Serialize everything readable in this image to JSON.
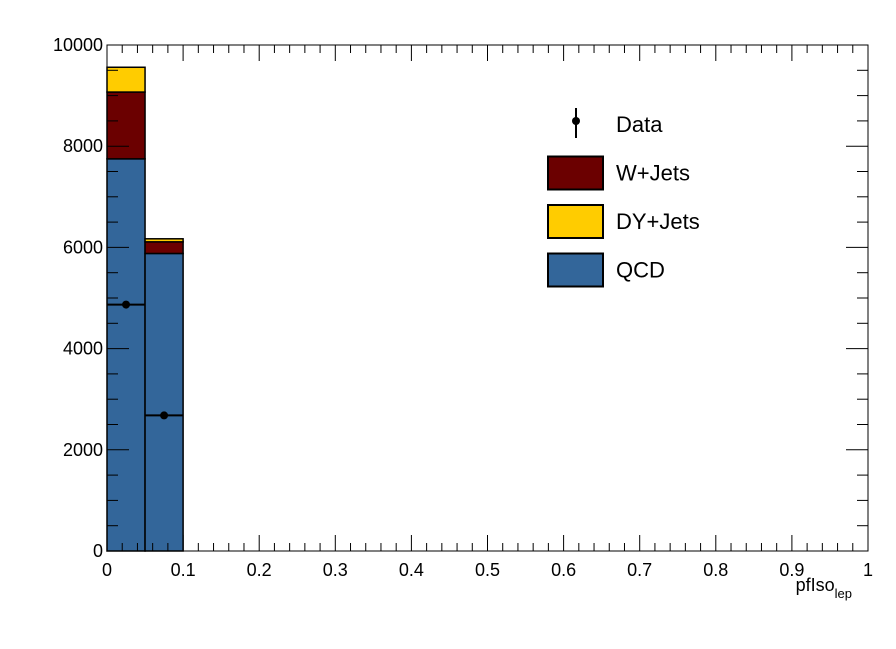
{
  "chart_data": {
    "type": "bar",
    "stacked": true,
    "xlabel": "pfIso",
    "xlabel_sub": "lep",
    "ylabel": "",
    "xlim": [
      0,
      1
    ],
    "ylim": [
      0,
      10000
    ],
    "x_ticks": [
      "0",
      "0.1",
      "0.2",
      "0.3",
      "0.4",
      "0.5",
      "0.6",
      "0.7",
      "0.8",
      "0.9",
      "1"
    ],
    "y_ticks": [
      "0",
      "2000",
      "4000",
      "6000",
      "8000",
      "10000"
    ],
    "bins": [
      {
        "x0": 0.0,
        "x1": 0.05
      },
      {
        "x0": 0.05,
        "x1": 0.1
      }
    ],
    "series": [
      {
        "name": "QCD",
        "color": "#33669a",
        "values": [
          7750,
          5880
        ]
      },
      {
        "name": "DY+Jets",
        "color": "#ffcc00",
        "values": [
          0,
          0
        ]
      },
      {
        "name": "W+Jets",
        "color": "#6b0000",
        "values": [
          1320,
          230
        ]
      },
      {
        "name": "DY+Jets (top)",
        "color": "#ffcc00",
        "values": [
          490,
          60
        ]
      }
    ],
    "data_points": {
      "name": "Data",
      "points": [
        {
          "x": 0.025,
          "xerr": 0.025,
          "y": 4870
        },
        {
          "x": 0.075,
          "xerr": 0.025,
          "y": 2680
        }
      ]
    },
    "legend": {
      "position": "top-right",
      "entries": [
        {
          "label": "Data",
          "kind": "marker",
          "color": "#000000"
        },
        {
          "label": "W+Jets",
          "kind": "box",
          "color": "#6b0000"
        },
        {
          "label": "DY+Jets",
          "kind": "box",
          "color": "#ffcc00"
        },
        {
          "label": "QCD",
          "kind": "box",
          "color": "#33669a"
        }
      ]
    }
  }
}
